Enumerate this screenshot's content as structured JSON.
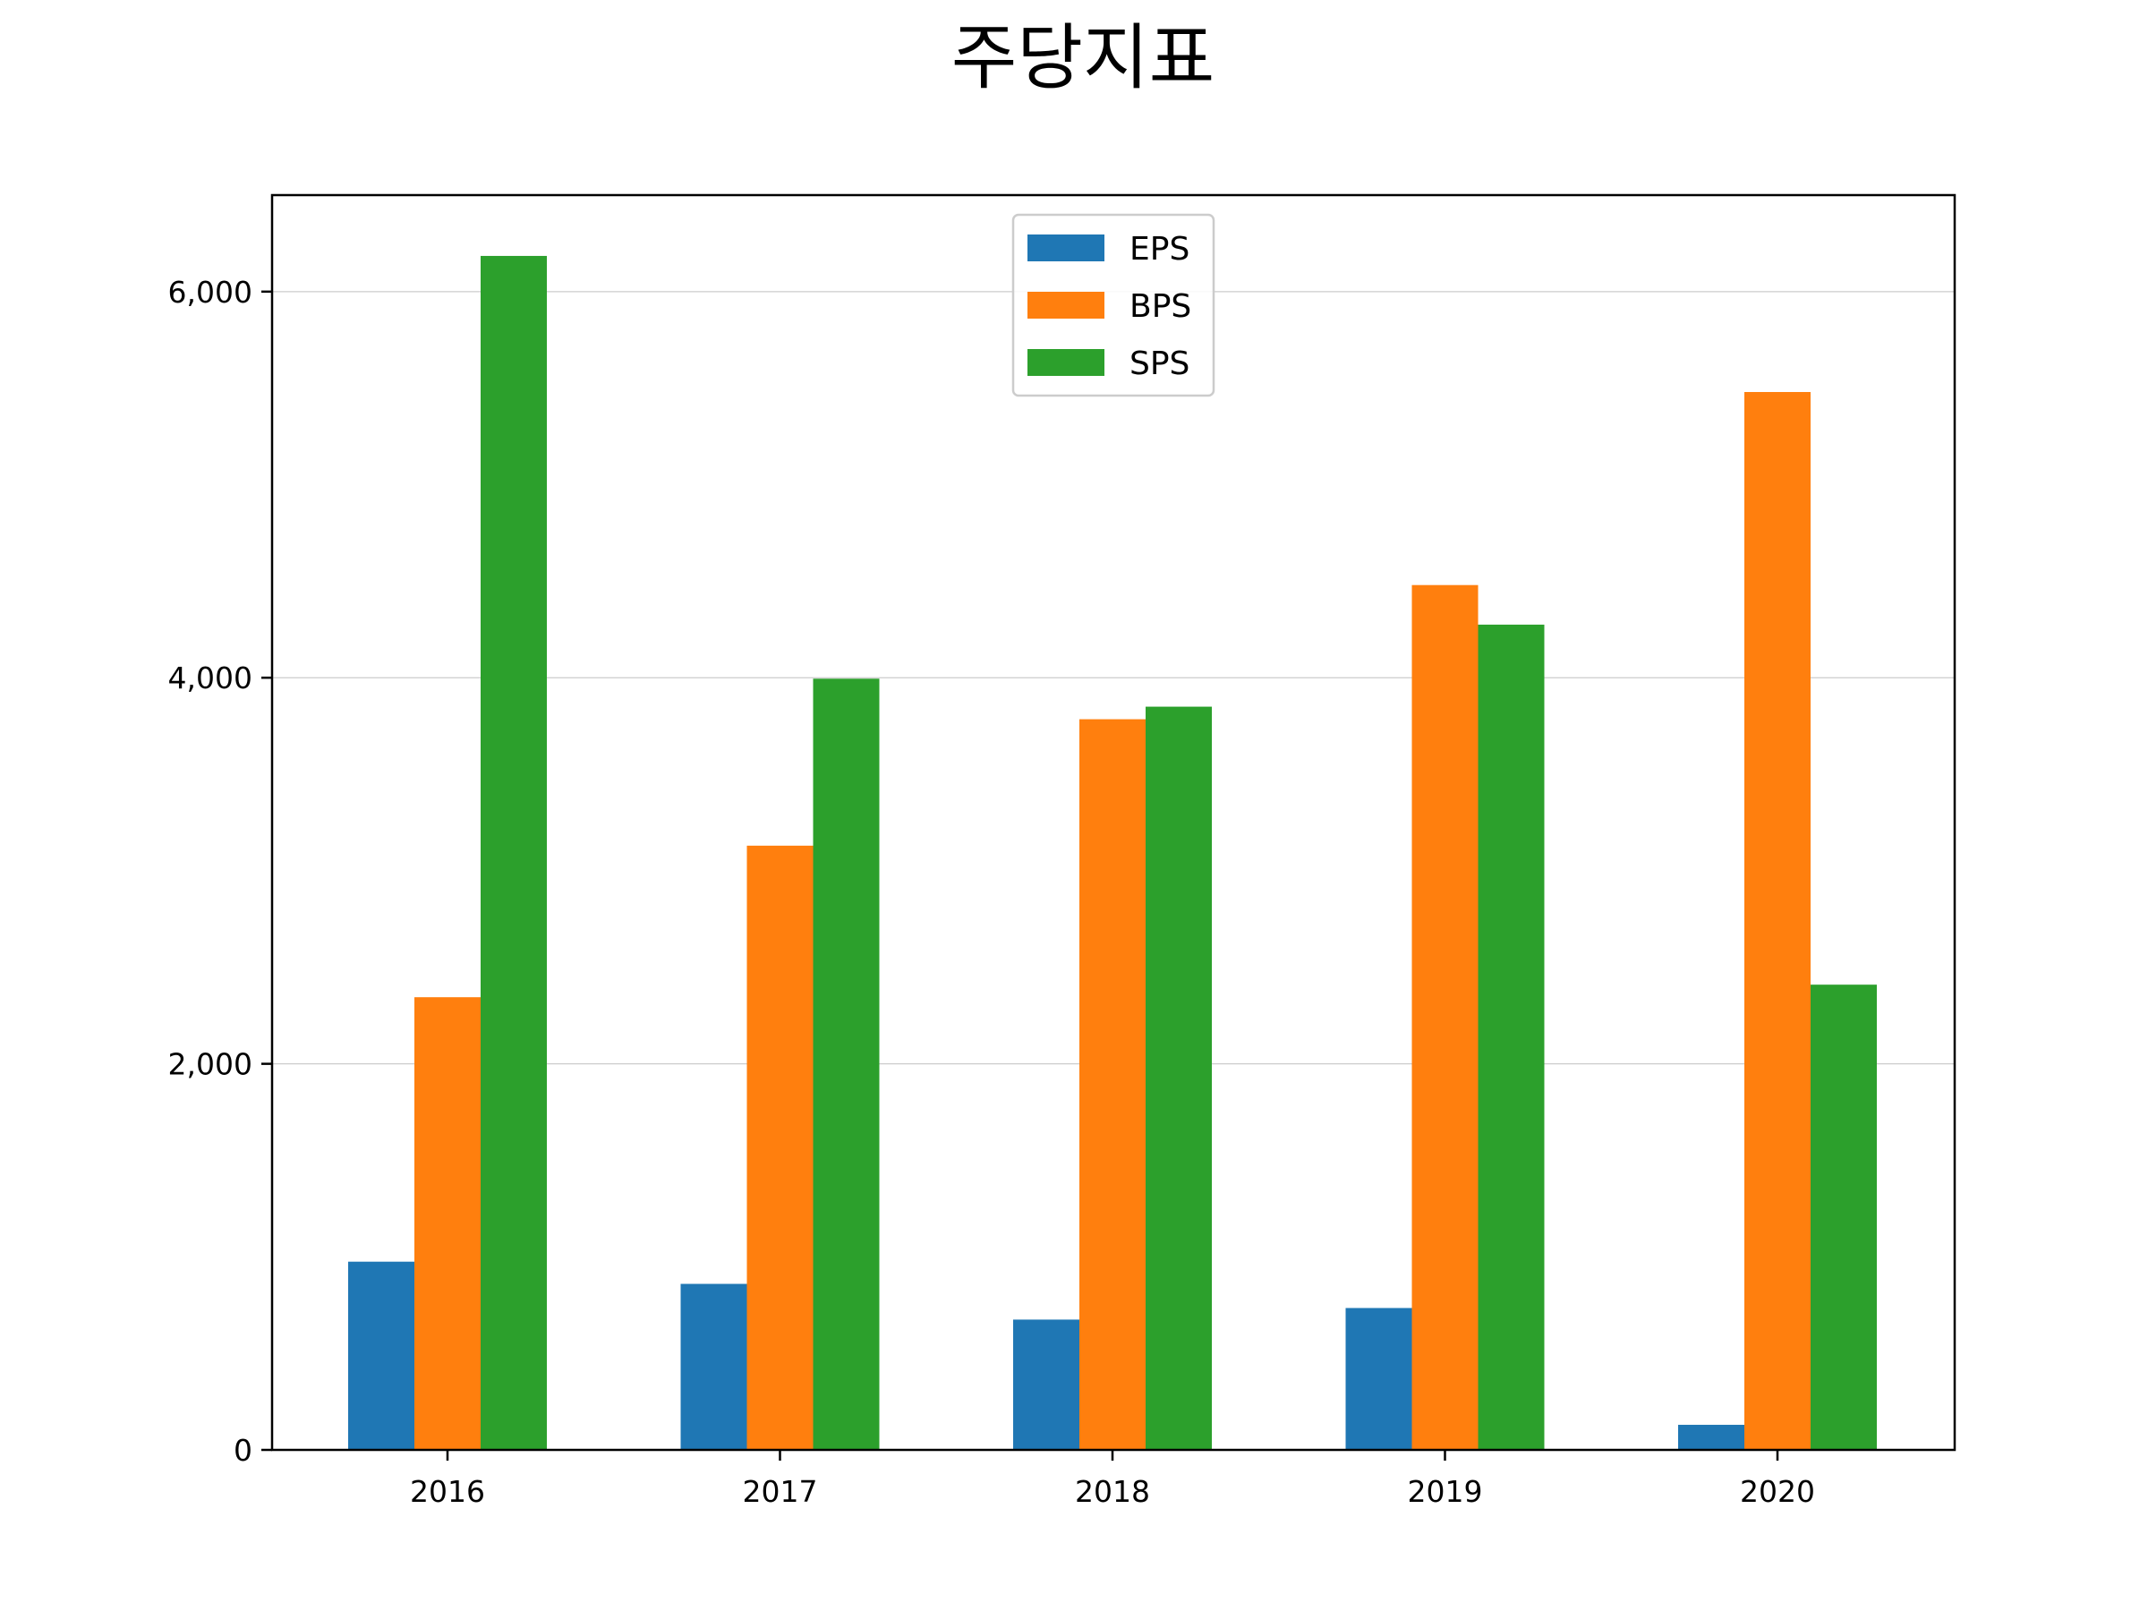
{
  "chart_data": {
    "type": "bar",
    "title": "주당지표",
    "xlabel": "",
    "ylabel": "",
    "categories": [
      "2016",
      "2017",
      "2018",
      "2019",
      "2020"
    ],
    "series": [
      {
        "name": "EPS",
        "color": "#1f77b4",
        "values": [
          975,
          860,
          675,
          735,
          130
        ]
      },
      {
        "name": "BPS",
        "color": "#ff7f0e",
        "values": [
          2345,
          3130,
          3785,
          4480,
          5480
        ]
      },
      {
        "name": "SPS",
        "color": "#2ca02c",
        "values": [
          6185,
          3995,
          3850,
          4275,
          2410
        ]
      }
    ],
    "ylim": [
      0,
      6500
    ],
    "yticks": [
      0,
      2000,
      4000,
      6000
    ],
    "ytick_labels": [
      "0",
      "2,000",
      "4,000",
      "6,000"
    ],
    "grid": "horizontal",
    "legend_position": "upper-center"
  }
}
